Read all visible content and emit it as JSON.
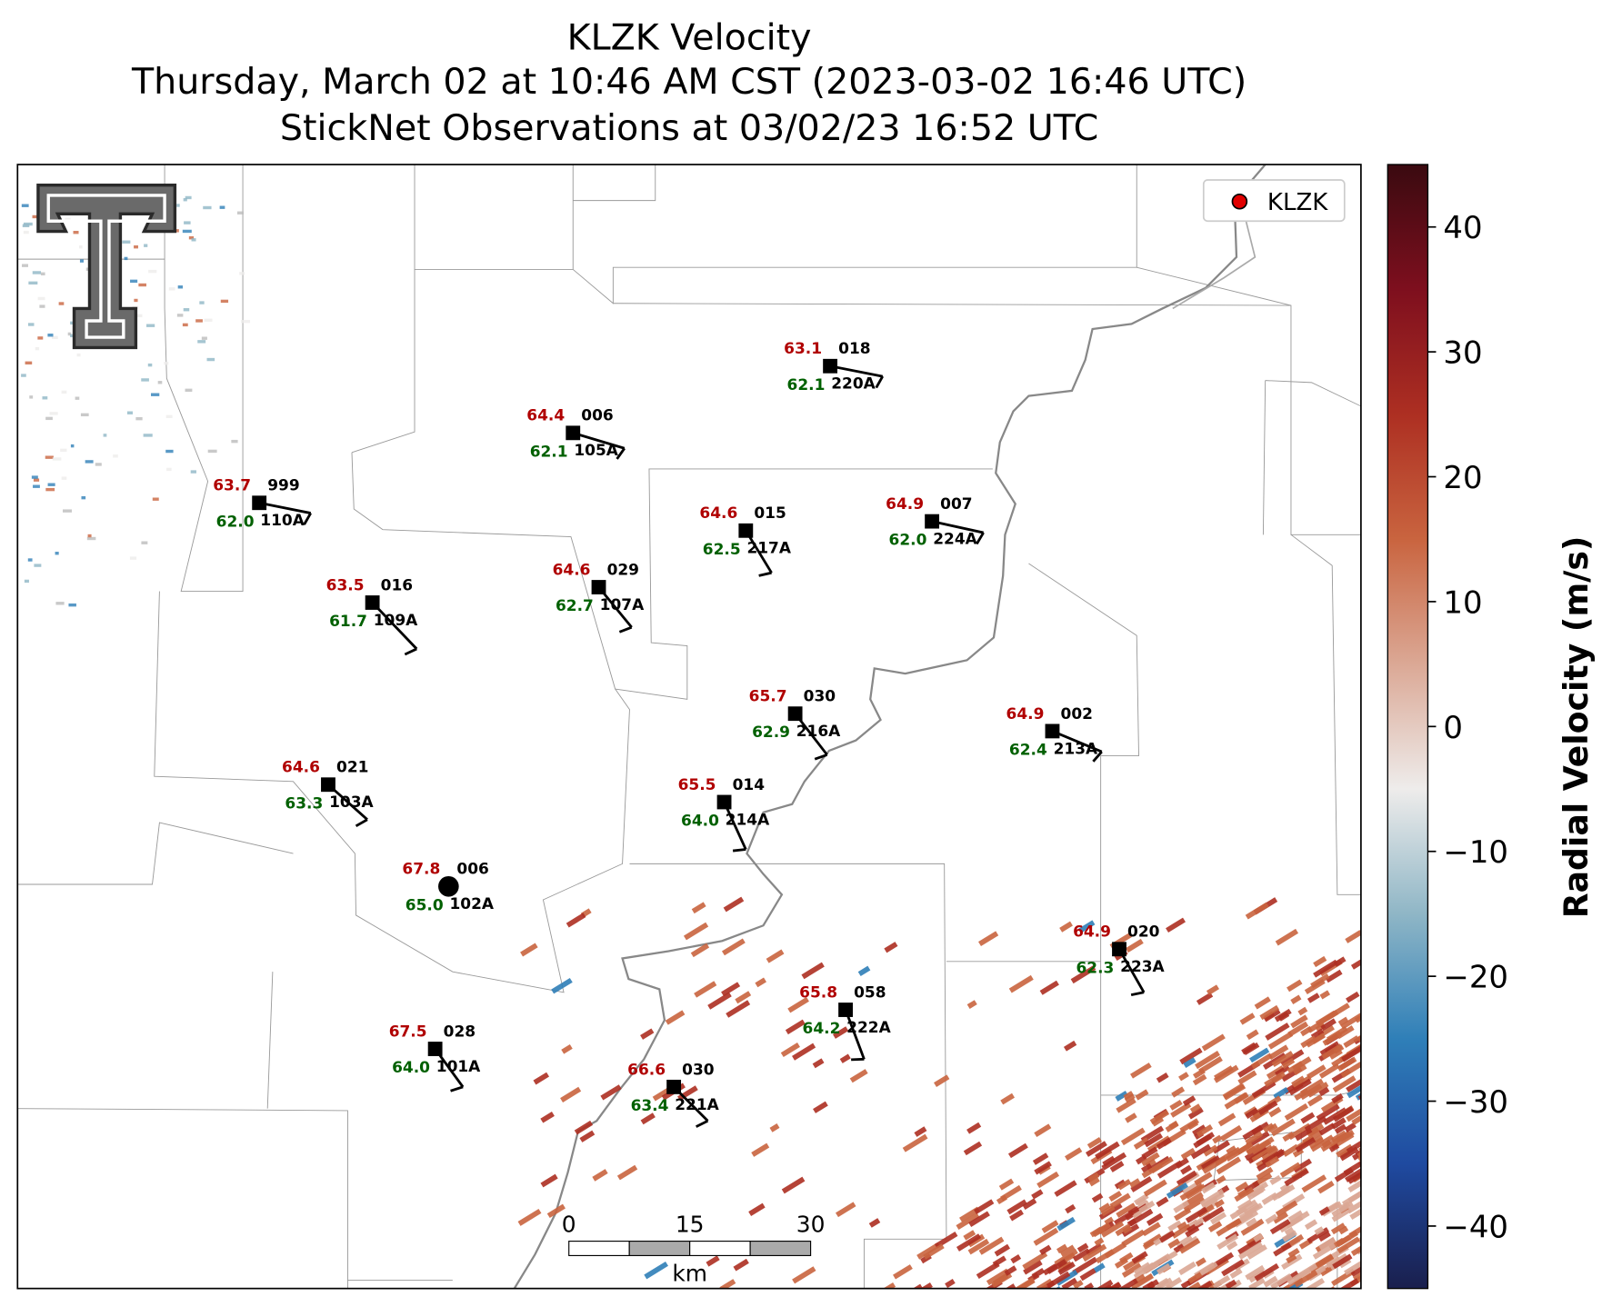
{
  "title": {
    "lines": [
      "KLZK Velocity",
      "Thursday, March 02 at 10:46 AM CST (2023-03-02 16:46 UTC)",
      "StickNet Observations at 03/02/23 16:52 UTC"
    ]
  },
  "legend": {
    "label": "KLZK",
    "color": "#e00000"
  },
  "stations": [
    {
      "temp": "63.7",
      "dewpoint": "62.0",
      "direction": "999",
      "id": "110A"
    },
    {
      "temp": "64.4",
      "dewpoint": "62.1",
      "direction": "006",
      "id": "105A"
    },
    {
      "temp": "63.1",
      "dewpoint": "62.1",
      "direction": "018",
      "id": "220A"
    },
    {
      "temp": "64.6",
      "dewpoint": "62.5",
      "direction": "015",
      "id": "217A"
    },
    {
      "temp": "64.9",
      "dewpoint": "62.0",
      "direction": "007",
      "id": "224A"
    },
    {
      "temp": "64.6",
      "dewpoint": "62.7",
      "direction": "029",
      "id": "107A"
    },
    {
      "temp": "63.5",
      "dewpoint": "61.7",
      "direction": "016",
      "id": "109A"
    },
    {
      "temp": "65.7",
      "dewpoint": "62.9",
      "direction": "030",
      "id": "216A"
    },
    {
      "temp": "64.9",
      "dewpoint": "62.4",
      "direction": "002",
      "id": "213A"
    },
    {
      "temp": "64.6",
      "dewpoint": "63.3",
      "direction": "021",
      "id": "103A"
    },
    {
      "temp": "65.5",
      "dewpoint": "64.0",
      "direction": "014",
      "id": "214A"
    },
    {
      "temp": "67.8",
      "dewpoint": "65.0",
      "direction": "006",
      "id": "102A"
    },
    {
      "temp": "64.9",
      "dewpoint": "62.3",
      "direction": "020",
      "id": "223A"
    },
    {
      "temp": "65.8",
      "dewpoint": "64.2",
      "direction": "058",
      "id": "222A"
    },
    {
      "temp": "67.5",
      "dewpoint": "64.0",
      "direction": "028",
      "id": "101A"
    },
    {
      "temp": "66.6",
      "dewpoint": "63.4",
      "direction": "030",
      "id": "221A"
    }
  ],
  "colorbar": {
    "label": "Radial Velocity (m/s)",
    "lim": [
      -45,
      45
    ],
    "ticks": [
      {
        "value": -40,
        "label": "−40"
      },
      {
        "value": -30,
        "label": "−30"
      },
      {
        "value": -20,
        "label": "−20"
      },
      {
        "value": -10,
        "label": "−10"
      },
      0,
      10,
      20,
      30,
      40
    ],
    "colors": [
      "#1a1f4d",
      "#1f4aa0",
      "#2f7fb8",
      "#8fb6c6",
      "#eeeceb",
      "#dba895",
      "#c9643f",
      "#ad2f22",
      "#7e0f1e",
      "#3a0a10"
    ]
  },
  "scale_bar": {
    "ticks": [
      0,
      15,
      30
    ],
    "unit": "km"
  }
}
